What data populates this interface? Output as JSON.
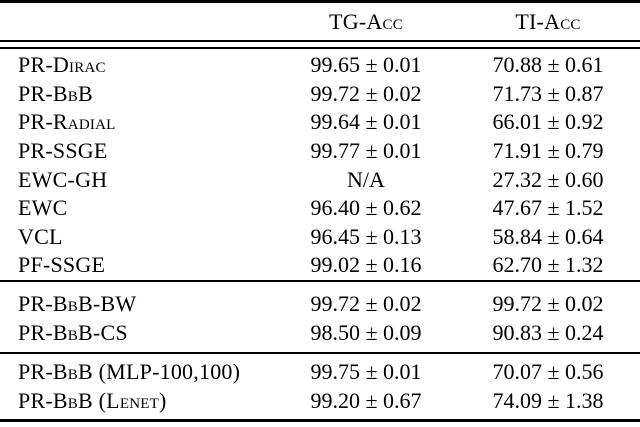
{
  "table": {
    "columns": {
      "method": "",
      "tg": "TG-Acc",
      "ti": "TI-Acc"
    },
    "sections": [
      {
        "rows": [
          {
            "method": "PR-Dirac",
            "tg": "99.65 ± 0.01",
            "ti": "70.88 ± 0.61"
          },
          {
            "method": "PR-BbB",
            "tg": "99.72 ± 0.02",
            "ti": "71.73 ± 0.87"
          },
          {
            "method": "PR-Radial",
            "tg": "99.64 ± 0.01",
            "ti": "66.01 ± 0.92"
          },
          {
            "method": "PR-SSGE",
            "tg": "99.77 ± 0.01",
            "ti": "71.91 ± 0.79"
          },
          {
            "method": "EWC-GH",
            "tg": "N/A",
            "ti": "27.32 ± 0.60"
          },
          {
            "method": "EWC",
            "tg": "96.40 ± 0.62",
            "ti": "47.67 ± 1.52"
          },
          {
            "method": "VCL",
            "tg": "96.45 ± 0.13",
            "ti": "58.84 ± 0.64"
          },
          {
            "method": "PF-SSGE",
            "tg": "99.02 ± 0.16",
            "ti": "62.70 ± 1.32"
          }
        ]
      },
      {
        "rows": [
          {
            "method": "PR-BbB-BW",
            "tg": "99.72 ± 0.02",
            "ti": "99.72 ± 0.02"
          },
          {
            "method": "PR-BbB-CS",
            "tg": "98.50 ± 0.09",
            "ti": "90.83 ± 0.24"
          }
        ]
      },
      {
        "rows": [
          {
            "method": "PR-BbB (MLP-100,100)",
            "tg": "99.75 ± 0.01",
            "ti": "70.07 ± 0.56"
          },
          {
            "method": "PR-BbB (Lenet)",
            "tg": "99.20 ± 0.67",
            "ti": "74.09 ± 1.38"
          }
        ]
      }
    ],
    "colors": {
      "text": "#000000",
      "rule": "#000000",
      "background": "#ffffff"
    }
  }
}
